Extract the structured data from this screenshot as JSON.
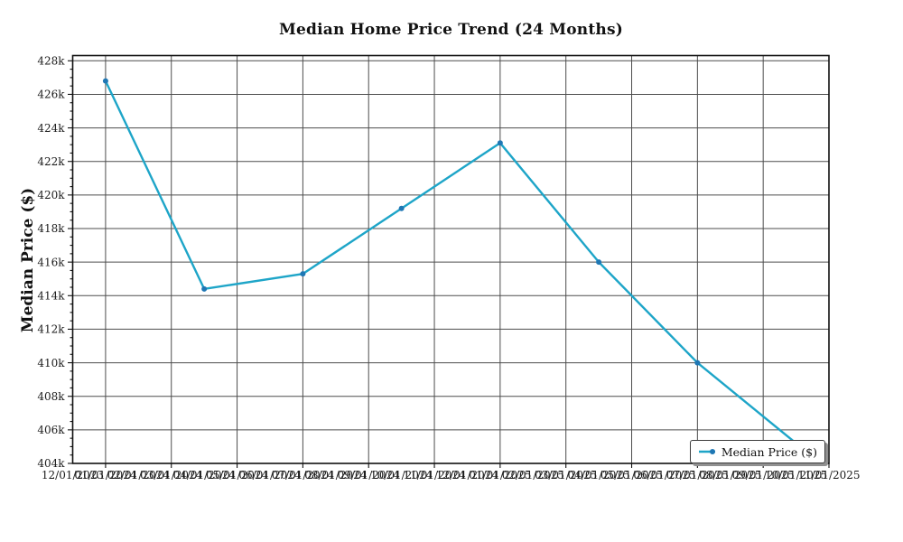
{
  "chart_data": {
    "type": "line",
    "title": "Median Home Price Trend (24 Months)",
    "xlabel": "",
    "ylabel": "Median Price ($)",
    "grid": true,
    "legend_position": "lower right",
    "ylim": [
      404000,
      428400
    ],
    "y_tick_step": 2000,
    "y_minor_tick_step": 500,
    "y_tick_labels": [
      "404k",
      "406k",
      "408k",
      "410k",
      "412k",
      "414k",
      "416k",
      "418k",
      "420k",
      "422k",
      "424k",
      "426k",
      "428k"
    ],
    "x_tick_labels": [
      "12/01/2023",
      "01/01/2024",
      "02/01/2024",
      "03/01/2024",
      "04/01/2024",
      "05/01/2024",
      "06/01/2024",
      "07/01/2024",
      "08/01/2024",
      "09/01/2024",
      "10/01/2024",
      "11/01/2024",
      "12/01/2024",
      "01/01/2025",
      "02/01/2025",
      "03/01/2025",
      "04/01/2025",
      "05/01/2025",
      "06/01/2025",
      "07/01/2025",
      "08/01/2025",
      "09/01/2025",
      "10/01/2025",
      "11/01/2025"
    ],
    "vertical_gridline_every_n_months": 2,
    "series": [
      {
        "name": "Median Price ($)",
        "line_color": "#1EA5C8",
        "marker_color": "#1F77B4",
        "points": [
          {
            "date": "01/01/2024",
            "value": 426800
          },
          {
            "date": "04/01/2024",
            "value": 414400
          },
          {
            "date": "07/01/2024",
            "value": 415300
          },
          {
            "date": "10/01/2024",
            "value": 419200
          },
          {
            "date": "01/01/2025",
            "value": 423100
          },
          {
            "date": "04/01/2025",
            "value": 416000
          },
          {
            "date": "07/01/2025",
            "value": 410000
          },
          {
            "date": "10/01/2025",
            "value": 405200
          }
        ]
      }
    ]
  },
  "colors": {
    "grid": "#4d4d4d",
    "spine": "#111111",
    "tick_text": "#1a1a1a",
    "legend_shadow": "#909090",
    "background": "#ffffff"
  }
}
